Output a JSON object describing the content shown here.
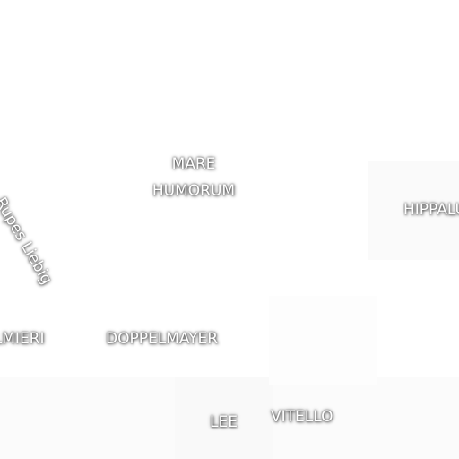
{
  "labels": {
    "mare_line1": "MARE",
    "mare_line2": "HUMORUM",
    "rupes": "Rupes Liebig",
    "hippalus": "HIPPALUS",
    "palmieri": "PALMIERI",
    "doppelmayer": "DOPPELMAYER",
    "lee": "LEE",
    "vitello": "VITELLO"
  },
  "colors": {
    "label_text": "#ffffff",
    "label_halo": "#000000",
    "background": "#ffffff"
  }
}
